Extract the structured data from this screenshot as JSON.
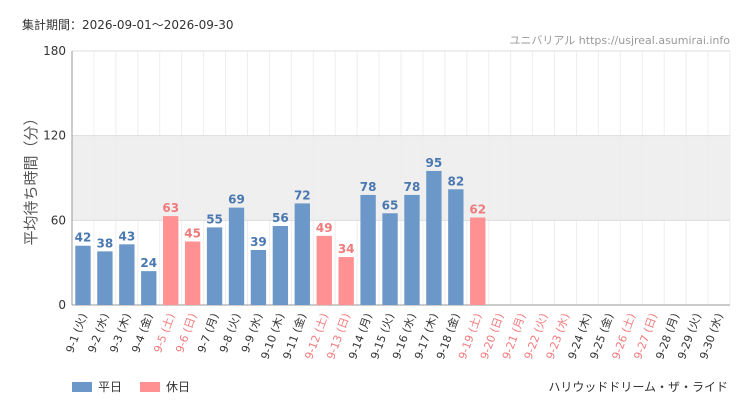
{
  "header": {
    "period": "集計期間：2026-09-01～2026-09-30",
    "watermark": "ユニバリアル  https://usjreal.asumirai.info"
  },
  "footer": {
    "attraction": "ハリウッドドリーム・ザ・ライド"
  },
  "colors": {
    "weekday": "#6b98c9",
    "holiday": "#ff9193",
    "weekday_label": "#4a78b0",
    "holiday_label": "#f07a7c",
    "band": "#efefef",
    "grid": "#dddddd"
  },
  "chart_data": {
    "type": "bar",
    "ylabel": "平均待ち時間（分）",
    "ylim": [
      0,
      180
    ],
    "yticks": [
      0,
      60,
      120,
      180
    ],
    "band": [
      60,
      120
    ],
    "grid": true,
    "legend_position": "bottom-left",
    "legend": [
      {
        "name": "平日",
        "key": "weekday"
      },
      {
        "name": "休日",
        "key": "holiday"
      }
    ],
    "categories": [
      "9-1 (火)",
      "9-2 (水)",
      "9-3 (木)",
      "9-4 (金)",
      "9-5 (土)",
      "9-6 (日)",
      "9-7 (月)",
      "9-8 (火)",
      "9-9 (水)",
      "9-10 (木)",
      "9-11 (金)",
      "9-12 (土)",
      "9-13 (日)",
      "9-14 (月)",
      "9-15 (火)",
      "9-16 (水)",
      "9-17 (木)",
      "9-18 (金)",
      "9-19 (土)",
      "9-20 (日)",
      "9-21 (月)",
      "9-22 (火)",
      "9-23 (水)",
      "9-24 (木)",
      "9-25 (金)",
      "9-26 (土)",
      "9-27 (日)",
      "9-28 (月)",
      "9-29 (火)",
      "9-30 (水)"
    ],
    "day_type": [
      "weekday",
      "weekday",
      "weekday",
      "weekday",
      "holiday",
      "holiday",
      "weekday",
      "weekday",
      "weekday",
      "weekday",
      "weekday",
      "holiday",
      "holiday",
      "weekday",
      "weekday",
      "weekday",
      "weekday",
      "weekday",
      "holiday",
      "holiday",
      "holiday",
      "holiday",
      "holiday",
      "weekday",
      "weekday",
      "holiday",
      "holiday",
      "weekday",
      "weekday",
      "weekday"
    ],
    "values": [
      42,
      38,
      43,
      24,
      63,
      45,
      55,
      69,
      39,
      56,
      72,
      49,
      34,
      78,
      65,
      78,
      95,
      82,
      62,
      null,
      null,
      null,
      null,
      null,
      null,
      null,
      null,
      null,
      null,
      null
    ]
  }
}
